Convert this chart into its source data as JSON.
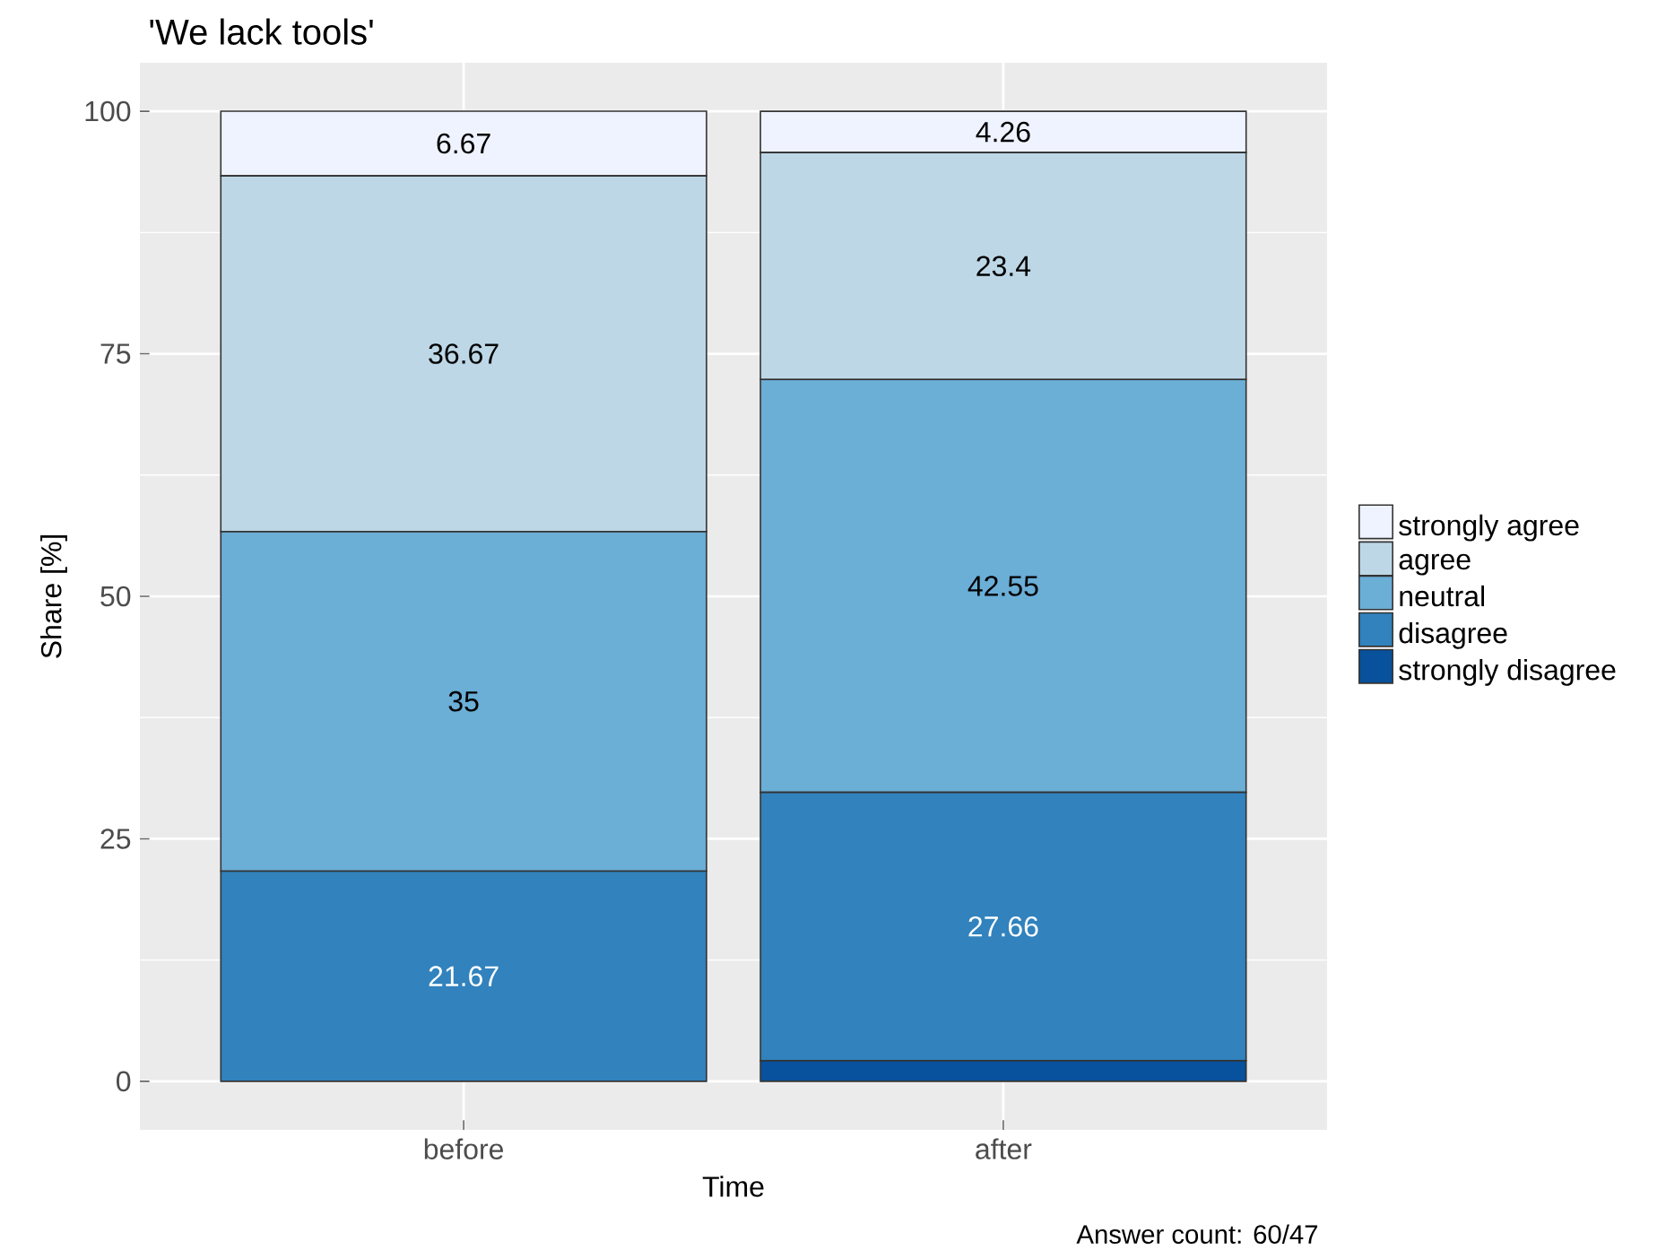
{
  "chart_data": {
    "type": "bar",
    "title": "'We lack tools'",
    "xlabel": "Time",
    "ylabel": "Share [%]",
    "categories": [
      "before",
      "after"
    ],
    "stacked": true,
    "series": [
      {
        "name": "strongly disagree",
        "color": "#08519c",
        "values": [
          0,
          2.13
        ],
        "value_labels": [
          null,
          null
        ]
      },
      {
        "name": "disagree",
        "color": "#3182bd",
        "values": [
          21.67,
          27.66
        ],
        "value_labels": [
          "21.67",
          "27.66"
        ]
      },
      {
        "name": "neutral",
        "color": "#6baed6",
        "values": [
          35,
          42.55
        ],
        "value_labels": [
          "35",
          "42.55"
        ]
      },
      {
        "name": "agree",
        "color": "#bdd7e7",
        "values": [
          36.67,
          23.4
        ],
        "value_labels": [
          "36.67",
          "23.4"
        ]
      },
      {
        "name": "strongly agree",
        "color": "#eff3ff",
        "values": [
          6.67,
          4.26
        ],
        "value_labels": [
          "6.67",
          "4.26"
        ]
      }
    ],
    "ylim": [
      -5,
      105
    ],
    "yticks": [
      0,
      25,
      50,
      75,
      100
    ],
    "grid": true,
    "legend": "right",
    "annotations": [
      "Answer count: 60/47"
    ]
  }
}
